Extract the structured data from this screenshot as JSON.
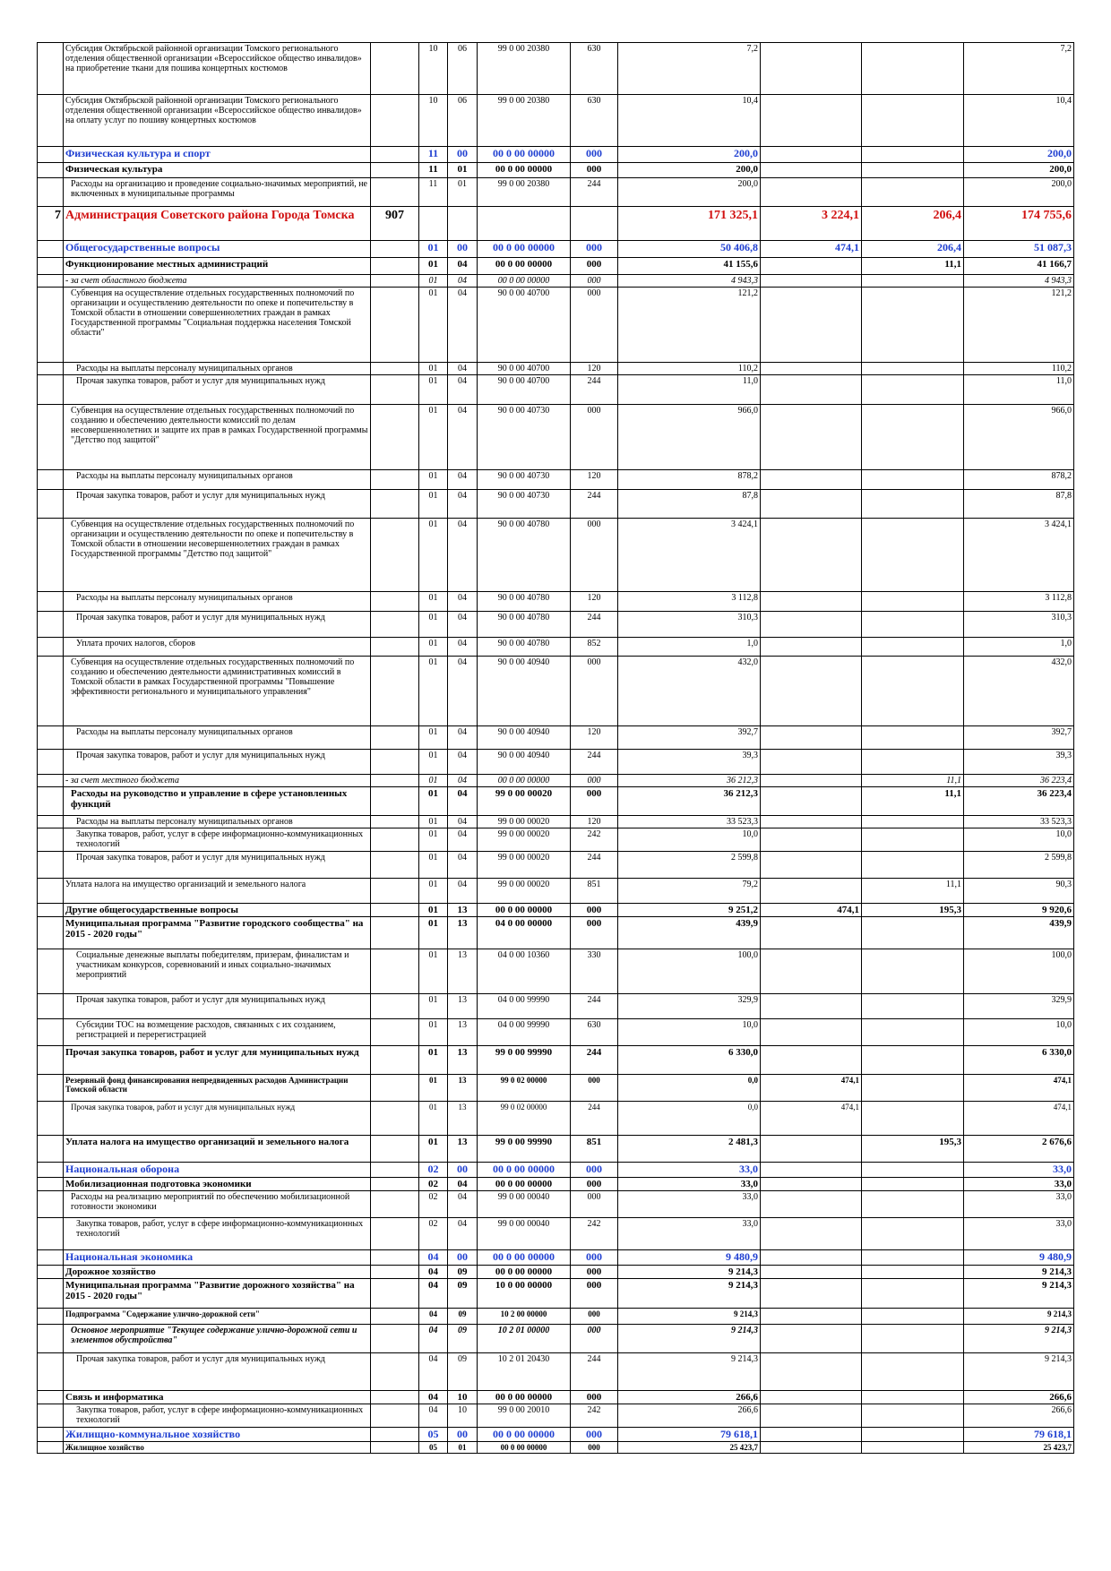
{
  "rows": [
    {
      "num": "",
      "name": "Субсидия Октябрьской районной организации Томского регионального отделения общественной организации «Всероссийское общество инвалидов» на приобретение ткани для пошива концертных костюмов",
      "dept": "",
      "rz": "10",
      "pr": "06",
      "csr": "99 0 00 20380",
      "vr": "630",
      "s1": "7,2",
      "s2": "",
      "s3": "",
      "s4": "7,2",
      "style": "n",
      "h": 58
    },
    {
      "num": "",
      "name": "Субсидия Октябрьской районной организации Томского регионального отделения общественной организации «Всероссийское общество инвалидов» на оплату услуг по пошиву концертных костюмов",
      "dept": "",
      "rz": "10",
      "pr": "06",
      "csr": "99 0 00 20380",
      "vr": "630",
      "s1": "10,4",
      "s2": "",
      "s3": "",
      "s4": "10,4",
      "style": "n",
      "h": 58
    },
    {
      "num": "",
      "name": "Физическая культура и спорт",
      "dept": "",
      "rz": "11",
      "pr": "00",
      "csr": "00 0 00 00000",
      "vr": "000",
      "s1": "200,0",
      "s2": "",
      "s3": "",
      "s4": "200,0",
      "style": "bl",
      "h": 18
    },
    {
      "num": "",
      "name": "Физическая культура",
      "dept": "",
      "rz": "11",
      "pr": "01",
      "csr": "00 0 00 00000",
      "vr": "000",
      "s1": "200,0",
      "s2": "",
      "s3": "",
      "s4": "200,0",
      "style": "b",
      "h": 17
    },
    {
      "num": "",
      "name": "Расходы на организацию и проведение социально-значимых мероприятий, не включенных в муниципальные программы",
      "dept": "",
      "rz": "11",
      "pr": "01",
      "csr": "99 0 00 20380",
      "vr": "244",
      "s1": "200,0",
      "s2": "",
      "s3": "",
      "s4": "200,0",
      "style": "n",
      "ind": 1,
      "h": 32
    },
    {
      "num": "7",
      "name": "Администрация Советского района Города Томска",
      "dept": "907",
      "rz": "",
      "pr": "",
      "csr": "",
      "vr": "",
      "s1": "171 325,1",
      "s2": "3 224,1",
      "s3": "206,4",
      "s4": "174 755,6",
      "style": "red",
      "h": 38
    },
    {
      "num": "",
      "name": "Общегосударственные вопросы",
      "dept": "",
      "rz": "01",
      "pr": "00",
      "csr": "00 0 00 00000",
      "vr": "000",
      "s1": "50 406,8",
      "s2": "474,1",
      "s3": "206,4",
      "s4": "51 087,3",
      "style": "bl",
      "h": 19
    },
    {
      "num": "",
      "name": "Функционирование местных администраций",
      "dept": "",
      "rz": "01",
      "pr": "04",
      "csr": "00 0 00 00000",
      "vr": "000",
      "s1": "41 155,6",
      "s2": "",
      "s3": "11,1",
      "s4": "41 166,7",
      "style": "b",
      "h": 19
    },
    {
      "num": "",
      "name": "- за счет областного бюджета",
      "dept": "",
      "rz": "01",
      "pr": "04",
      "csr": "00 0 00 00000",
      "vr": "000",
      "s1": "4 943,3",
      "s2": "",
      "s3": "",
      "s4": "4 943,3",
      "style": "i",
      "h": 13
    },
    {
      "num": "",
      "name": "Субвенция на осуществление отдельных государственных полномочий по организации и осуществлению деятельности по опеке и попечительству в Томской области в отношении совершеннолетних граждан в рамках Государственной программы \"Социальная поддержка населения Томской области\"",
      "dept": "",
      "rz": "01",
      "pr": "04",
      "csr": "90 0 00 40700",
      "vr": "000",
      "s1": "121,2",
      "s2": "",
      "s3": "",
      "s4": "121,2",
      "style": "n",
      "ind": 1,
      "h": 84
    },
    {
      "num": "",
      "name": "Расходы на выплаты персоналу муниципальных органов",
      "dept": "",
      "rz": "01",
      "pr": "04",
      "csr": "90 0 00 40700",
      "vr": "120",
      "s1": "110,2",
      "s2": "",
      "s3": "",
      "s4": "110,2",
      "style": "n",
      "ind": 2,
      "h": 13
    },
    {
      "num": "",
      "name": "Прочая закупка товаров, работ и услуг для муниципальных нужд",
      "dept": "",
      "rz": "01",
      "pr": "04",
      "csr": "90 0 00 40700",
      "vr": "244",
      "s1": "11,0",
      "s2": "",
      "s3": "",
      "s4": "11,0",
      "style": "n",
      "ind": 2,
      "h": 33
    },
    {
      "num": "",
      "name": "Субвенция на осуществление отдельных государственных полномочий по созданию и обеспечению деятельности комиссий по делам несовершеннолетних и защите их прав в рамках Государственной программы \"Детство под защитой\"",
      "dept": "",
      "rz": "01",
      "pr": "04",
      "csr": "90 0 00 40730",
      "vr": "000",
      "s1": "966,0",
      "s2": "",
      "s3": "",
      "s4": "966,0",
      "style": "n",
      "ind": 1,
      "h": 73
    },
    {
      "num": "",
      "name": "Расходы на выплаты персоналу муниципальных органов",
      "dept": "",
      "rz": "01",
      "pr": "04",
      "csr": "90 0 00 40730",
      "vr": "120",
      "s1": "878,2",
      "s2": "",
      "s3": "",
      "s4": "878,2",
      "style": "n",
      "ind": 2,
      "h": 22
    },
    {
      "num": "",
      "name": "Прочая закупка товаров, работ и услуг для муниципальных нужд",
      "dept": "",
      "rz": "01",
      "pr": "04",
      "csr": "90 0 00 40730",
      "vr": "244",
      "s1": "87,8",
      "s2": "",
      "s3": "",
      "s4": "87,8",
      "style": "n",
      "ind": 2,
      "h": 32
    },
    {
      "num": "",
      "name": "Субвенция на осуществление отдельных государственных полномочий по организации и осуществлению деятельности по опеке и попечительству в Томской области в отношении несовершеннолетних граждан в рамках Государственной программы \"Детство под защитой\"",
      "dept": "",
      "rz": "01",
      "pr": "04",
      "csr": "90 0 00 40780",
      "vr": "000",
      "s1": "3 424,1",
      "s2": "",
      "s3": "",
      "s4": "3 424,1",
      "style": "n",
      "ind": 1,
      "h": 82
    },
    {
      "num": "",
      "name": "Расходы на выплаты персоналу муниципальных органов",
      "dept": "",
      "rz": "01",
      "pr": "04",
      "csr": "90 0 00 40780",
      "vr": "120",
      "s1": "3 112,8",
      "s2": "",
      "s3": "",
      "s4": "3 112,8",
      "style": "n",
      "ind": 2,
      "h": 22
    },
    {
      "num": "",
      "name": "Прочая закупка товаров, работ и услуг для муниципальных нужд",
      "dept": "",
      "rz": "01",
      "pr": "04",
      "csr": "90 0 00 40780",
      "vr": "244",
      "s1": "310,3",
      "s2": "",
      "s3": "",
      "s4": "310,3",
      "style": "n",
      "ind": 2,
      "h": 29
    },
    {
      "num": "",
      "name": "Уплата прочих налогов, сборов",
      "dept": "",
      "rz": "01",
      "pr": "04",
      "csr": "90 0 00 40780",
      "vr": "852",
      "s1": "1,0",
      "s2": "",
      "s3": "",
      "s4": "1,0",
      "style": "n",
      "ind": 2,
      "h": 21
    },
    {
      "num": "",
      "name": "Субвенция на осуществление отдельных государственных полномочий по созданию и обеспечению деятельности административных комиссий в Томской области в рамках Государственной программы \"Повышение эффективности регионального и муниципального управления\"",
      "dept": "",
      "rz": "01",
      "pr": "04",
      "csr": "90 0 00 40940",
      "vr": "000",
      "s1": "432,0",
      "s2": "",
      "s3": "",
      "s4": "432,0",
      "style": "n",
      "ind": 1,
      "h": 78
    },
    {
      "num": "",
      "name": "Расходы на выплаты персоналу муниципальных органов",
      "dept": "",
      "rz": "01",
      "pr": "04",
      "csr": "90 0 00 40940",
      "vr": "120",
      "s1": "392,7",
      "s2": "",
      "s3": "",
      "s4": "392,7",
      "style": "n",
      "ind": 2,
      "h": 26
    },
    {
      "num": "",
      "name": "Прочая закупка товаров, работ и услуг для муниципальных нужд",
      "dept": "",
      "rz": "01",
      "pr": "04",
      "csr": "90 0 00 40940",
      "vr": "244",
      "s1": "39,3",
      "s2": "",
      "s3": "",
      "s4": "39,3",
      "style": "n",
      "ind": 2,
      "h": 28
    },
    {
      "num": "",
      "name": "- за счет местного бюджета",
      "dept": "",
      "rz": "01",
      "pr": "04",
      "csr": "00 0 00 00000",
      "vr": "000",
      "s1": "36 212,3",
      "s2": "",
      "s3": "11,1",
      "s4": "36 223,4",
      "style": "i",
      "h": 13
    },
    {
      "num": "",
      "name": "Расходы на руководство и управление в сфере установленных функций",
      "dept": "",
      "rz": "01",
      "pr": "04",
      "csr": "99 0 00 00020",
      "vr": "000",
      "s1": "36 212,3",
      "s2": "",
      "s3": "11,1",
      "s4": "36 223,4",
      "style": "b",
      "ind": 1,
      "h": 32
    },
    {
      "num": "",
      "name": "Расходы на выплаты персоналу муниципальных органов",
      "dept": "",
      "rz": "01",
      "pr": "04",
      "csr": "99 0 00 00020",
      "vr": "120",
      "s1": "33 523,3",
      "s2": "",
      "s3": "",
      "s4": "33 523,3",
      "style": "n",
      "ind": 2,
      "h": 13
    },
    {
      "num": "",
      "name": "Закупка товаров, работ, услуг в сфере информационно-коммуникационных технологий",
      "dept": "",
      "rz": "01",
      "pr": "04",
      "csr": "99 0 00 00020",
      "vr": "242",
      "s1": "10,0",
      "s2": "",
      "s3": "",
      "s4": "10,0",
      "style": "n",
      "ind": 2,
      "h": 26
    },
    {
      "num": "",
      "name": "Прочая закупка товаров, работ и услуг для муниципальных нужд",
      "dept": "",
      "rz": "01",
      "pr": "04",
      "csr": "99 0 00 00020",
      "vr": "244",
      "s1": "2 599,8",
      "s2": "",
      "s3": "",
      "s4": "2 599,8",
      "style": "n",
      "ind": 2,
      "h": 30
    },
    {
      "num": "",
      "name": "Уплата налога на имущество организаций и земельного налога",
      "dept": "",
      "rz": "01",
      "pr": "04",
      "csr": "99 0 00 00020",
      "vr": "851",
      "s1": "79,2",
      "s2": "",
      "s3": "11,1",
      "s4": "90,3",
      "style": "n",
      "h": 28
    },
    {
      "num": "",
      "name": "Другие общегосударственные вопросы",
      "dept": "",
      "rz": "01",
      "pr": "13",
      "csr": "00 0 00 00000",
      "vr": "000",
      "s1": "9 251,2",
      "s2": "474,1",
      "s3": "195,3",
      "s4": "9 920,6",
      "style": "b",
      "h": 14
    },
    {
      "num": "",
      "name": "Муниципальная программа \"Развитие городского сообщества\" на 2015 - 2020 годы\"",
      "dept": "",
      "rz": "01",
      "pr": "13",
      "csr": "04 0 00 00000",
      "vr": "000",
      "s1": "439,9",
      "s2": "",
      "s3": "",
      "s4": "439,9",
      "style": "b",
      "h": 36
    },
    {
      "num": "",
      "name": "Социальные денежные выплаты победителям, призерам, финалистам и участникам конкурсов, соревнований и иных социально-значимых мероприятий",
      "dept": "",
      "rz": "01",
      "pr": "13",
      "csr": "04 0 00 10360",
      "vr": "330",
      "s1": "100,0",
      "s2": "",
      "s3": "",
      "s4": "100,0",
      "style": "n",
      "ind": 2,
      "h": 50
    },
    {
      "num": "",
      "name": "Прочая закупка товаров, работ и услуг для муниципальных нужд",
      "dept": "",
      "rz": "01",
      "pr": "13",
      "csr": "04 0 00 99990",
      "vr": "244",
      "s1": "329,9",
      "s2": "",
      "s3": "",
      "s4": "329,9",
      "style": "n",
      "ind": 2,
      "h": 28
    },
    {
      "num": "",
      "name": "Субсидии ТОС на возмещение расходов, связанных с их созданием, регистрацией и перерегистрацией",
      "dept": "",
      "rz": "01",
      "pr": "13",
      "csr": "04 0 00 99990",
      "vr": "630",
      "s1": "10,0",
      "s2": "",
      "s3": "",
      "s4": "10,0",
      "style": "n",
      "ind": 2,
      "h": 30
    },
    {
      "num": "",
      "name": "Прочая закупка товаров, работ и услуг для муниципальных нужд",
      "dept": "",
      "rz": "01",
      "pr": "13",
      "csr": "99 0 00 99990",
      "vr": "244",
      "s1": "6 330,0",
      "s2": "",
      "s3": "",
      "s4": "6 330,0",
      "style": "b",
      "h": 32
    },
    {
      "num": "",
      "name": "Резервный фонд финансирования непредвиденных расходов Администрации Томской области",
      "dept": "",
      "rz": "01",
      "pr": "13",
      "csr": "99 0 02 00000",
      "vr": "000",
      "s1": "0,0",
      "s2": "474,1",
      "s3": "",
      "s4": "474,1",
      "style": "smb",
      "h": 30
    },
    {
      "num": "",
      "name": "Прочая закупка товаров, работ и услуг для муниципальных нужд",
      "dept": "",
      "rz": "01",
      "pr": "13",
      "csr": "99 0 02 00000",
      "vr": "244",
      "s1": "0,0",
      "s2": "474,1",
      "s3": "",
      "s4": "474,1",
      "style": "sm",
      "ind": 1,
      "h": 38
    },
    {
      "num": "",
      "name": "Уплата налога на имущество организаций и земельного налога",
      "dept": "",
      "rz": "01",
      "pr": "13",
      "csr": "99 0 00 99990",
      "vr": "851",
      "s1": "2 481,3",
      "s2": "",
      "s3": "195,3",
      "s4": "2 676,6",
      "style": "b",
      "h": 30
    },
    {
      "num": "",
      "name": "Национальная оборона",
      "dept": "",
      "rz": "02",
      "pr": "00",
      "csr": "00 0 00 00000",
      "vr": "000",
      "s1": "33,0",
      "s2": "",
      "s3": "",
      "s4": "33,0",
      "style": "bl",
      "h": 17
    },
    {
      "num": "",
      "name": "Мобилизационная подготовка экономики",
      "dept": "",
      "rz": "02",
      "pr": "04",
      "csr": "00 0 00 00000",
      "vr": "000",
      "s1": "33,0",
      "s2": "",
      "s3": "",
      "s4": "33,0",
      "style": "b",
      "h": 13
    },
    {
      "num": "",
      "name": "Расходы на реализацию мероприятий по обеспечению мобилизационной готовности экономики",
      "dept": "",
      "rz": "02",
      "pr": "04",
      "csr": "99 0 00 00040",
      "vr": "000",
      "s1": "33,0",
      "s2": "",
      "s3": "",
      "s4": "33,0",
      "style": "n",
      "ind": 1,
      "h": 30
    },
    {
      "num": "",
      "name": "Закупка товаров, работ, услуг в сфере информационно-коммуникационных технологий",
      "dept": "",
      "rz": "02",
      "pr": "04",
      "csr": "99 0 00 00040",
      "vr": "242",
      "s1": "33,0",
      "s2": "",
      "s3": "",
      "s4": "33,0",
      "style": "n",
      "ind": 2,
      "h": 36
    },
    {
      "num": "",
      "name": "Национальная экономика",
      "dept": "",
      "rz": "04",
      "pr": "00",
      "csr": "00 0 00 00000",
      "vr": "000",
      "s1": "9 480,9",
      "s2": "",
      "s3": "",
      "s4": "9 480,9",
      "style": "bl",
      "h": 17
    },
    {
      "num": "",
      "name": "Дорожное хозяйство",
      "dept": "",
      "rz": "04",
      "pr": "09",
      "csr": "00 0 00 00000",
      "vr": "000",
      "s1": "9 214,3",
      "s2": "",
      "s3": "",
      "s4": "9 214,3",
      "style": "b",
      "h": 13
    },
    {
      "num": "",
      "name": "Муниципальная программа \"Развитие дорожного хозяйства\" на 2015 - 2020 годы\"",
      "dept": "",
      "rz": "04",
      "pr": "09",
      "csr": "10 0 00 00000",
      "vr": "000",
      "s1": "9 214,3",
      "s2": "",
      "s3": "",
      "s4": "9 214,3",
      "style": "b",
      "h": 33
    },
    {
      "num": "",
      "name": "Подпрограмма \"Содержание улично-дорожной сети\"",
      "dept": "",
      "rz": "04",
      "pr": "09",
      "csr": "10 2 00 00000",
      "vr": "000",
      "s1": "9 214,3",
      "s2": "",
      "s3": "",
      "s4": "9 214,3",
      "style": "smb",
      "h": 18
    },
    {
      "num": "",
      "name": "Основное мероприятие \"Текущее содержание улично-дорожной сети и элементов обустройства\"",
      "dept": "",
      "rz": "04",
      "pr": "09",
      "csr": "10 2 01 00000",
      "vr": "000",
      "s1": "9 214,3",
      "s2": "",
      "s3": "",
      "s4": "9 214,3",
      "style": "bi",
      "ind": 1,
      "h": 32
    },
    {
      "num": "",
      "name": "Прочая закупка товаров, работ и услуг для муниципальных нужд",
      "dept": "",
      "rz": "04",
      "pr": "09",
      "csr": "10 2 01 20430",
      "vr": "244",
      "s1": "9 214,3",
      "s2": "",
      "s3": "",
      "s4": "9 214,3",
      "style": "n",
      "ind": 2,
      "h": 42
    },
    {
      "num": "",
      "name": "Связь и информатика",
      "dept": "",
      "rz": "04",
      "pr": "10",
      "csr": "00 0 00 00000",
      "vr": "000",
      "s1": "266,6",
      "s2": "",
      "s3": "",
      "s4": "266,6",
      "style": "b",
      "h": 13
    },
    {
      "num": "",
      "name": "Закупка товаров, работ, услуг в сфере информационно-коммуникационных технологий",
      "dept": "",
      "rz": "04",
      "pr": "10",
      "csr": "99 0 00 20010",
      "vr": "242",
      "s1": "266,6",
      "s2": "",
      "s3": "",
      "s4": "266,6",
      "style": "n",
      "ind": 2,
      "h": 26
    },
    {
      "num": "",
      "name": "Жилищно-коммунальное хозяйство",
      "dept": "",
      "rz": "05",
      "pr": "00",
      "csr": "00 0 00 00000",
      "vr": "000",
      "s1": "79 618,1",
      "s2": "",
      "s3": "",
      "s4": "79 618,1",
      "style": "bl",
      "h": 15
    },
    {
      "num": "",
      "name": "Жилищное хозяйство",
      "dept": "",
      "rz": "05",
      "pr": "01",
      "csr": "00 0 00 00000",
      "vr": "000",
      "s1": "25 423,7",
      "s2": "",
      "s3": "",
      "s4": "25 423,7",
      "style": "smb",
      "h": 12
    }
  ]
}
